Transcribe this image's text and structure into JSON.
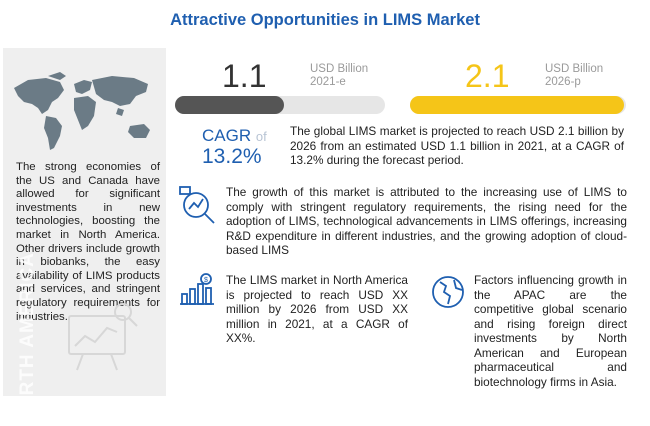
{
  "title": "Attractive Opportunities in LIMS Market",
  "sidebar": {
    "text": "The strong economies of the US and Canada have allowed for significant investments in new technologies, boosting the market in North America. Other drivers include growth in biobanks, the easy availability of LIMS products and services, and stringent regulatory requirements for industries.",
    "vertical_label": "NORTH AMERICA",
    "icons": [
      "world-map-icon",
      "analyst-chart-icon"
    ]
  },
  "stats": {
    "left": {
      "value": "1.1",
      "unit": "USD Billion",
      "year": "2021-e",
      "bar_fraction": 0.52,
      "bar_color": "#555555"
    },
    "right": {
      "value": "2.1",
      "unit": "USD Billion",
      "year": "2026-p",
      "bar_fraction": 0.99,
      "bar_color": "#f5c518"
    }
  },
  "cagr": {
    "label": "CAGR",
    "of": "of",
    "value": "13.2%",
    "text": "The global LIMS market is projected to reach USD 2.1 billion by 2026 from an estimated USD 1.1 billion in 2021, at a CAGR of 13.2% during the forecast period."
  },
  "growth": {
    "text": "The growth of this market is attributed to the increasing use of LIMS to comply with stringent regulatory requirements, the rising need for the adoption of LIMS, technological advancements in LIMS offerings, increasing R&D expenditure in different industries, and the growing adoption of cloud-based LIMS",
    "icon": "growth-analysis-icon"
  },
  "north_america": {
    "text": "The LIMS market in North America is projected to reach USD XX million by 2026 from USD XX million in 2021, at a CAGR of XX%.",
    "icon": "bar-chart-dollar-icon"
  },
  "apac": {
    "text": "Factors influencing growth in the APAC are the competitive global scenario and rising foreign direct investments by North American and European pharmaceutical and biotechnology firms in Asia.",
    "icon": "globe-icon"
  },
  "colors": {
    "accent": "#1f5fb0",
    "yellow": "#f5c518",
    "dark": "#555555"
  }
}
